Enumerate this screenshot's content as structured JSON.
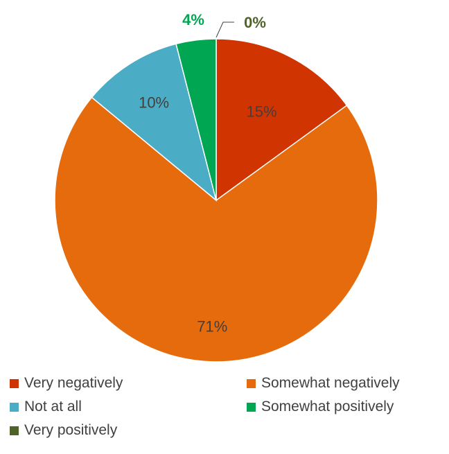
{
  "chart_data": {
    "type": "pie",
    "title": "",
    "categories": [
      "Very negatively",
      "Somewhat negatively",
      "Not at all",
      "Somewhat positively",
      "Very positively"
    ],
    "values": [
      15,
      71,
      10,
      4,
      0
    ],
    "data_labels": [
      "15%",
      "71%",
      "10%",
      "4%",
      "0%"
    ],
    "colors": [
      "#d03400",
      "#e56b0d",
      "#4bacc6",
      "#00a651",
      "#4f6228"
    ],
    "label_colors": [
      "#404040",
      "#404040",
      "#404040",
      "#00a651",
      "#4f6228"
    ],
    "start_angle_deg": 0,
    "direction": "clockwise",
    "legend_position": "bottom"
  },
  "legend": {
    "items": [
      {
        "label": "Very negatively",
        "color": "#d03400"
      },
      {
        "label": "Somewhat negatively",
        "color": "#e56b0d"
      },
      {
        "label": "Not at all",
        "color": "#4bacc6"
      },
      {
        "label": "Somewhat positively",
        "color": "#00a651"
      },
      {
        "label": "Very positively",
        "color": "#4f6228"
      }
    ]
  }
}
